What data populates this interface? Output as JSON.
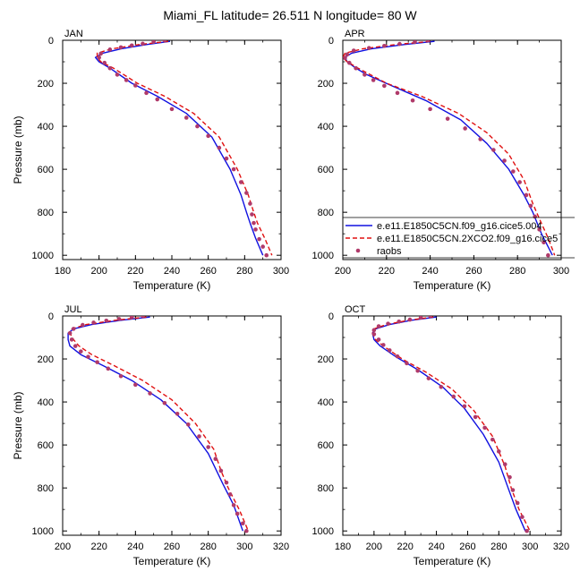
{
  "title": "Miami_FL  latitude= 26.511 N longitude= 80 W",
  "colors": {
    "model1": "#1010e0",
    "model2": "#e01010",
    "raobs": "#b03a6a"
  },
  "legend": {
    "entries": [
      {
        "label": "e.e11.E1850C5CN.f09_g16.cice5.004",
        "style": "solid",
        "color_key": "model1"
      },
      {
        "label": "e.e11.E1850C5CN.2XCO2.f09_g16.cice5",
        "style": "dashed",
        "color_key": "model2"
      },
      {
        "label": "raobs",
        "style": "dots",
        "color_key": "raobs"
      }
    ],
    "panel": "APR",
    "placement": "bottom-right"
  },
  "chart_data": [
    {
      "type": "line",
      "panel": "JAN",
      "xlabel": "Temperature (K)",
      "ylabel": "Pressure (mb)",
      "xlim": [
        180,
        300
      ],
      "ylim": [
        1020,
        0
      ],
      "xticks": [
        180,
        200,
        220,
        240,
        260,
        280,
        300
      ],
      "yticks": [
        0,
        200,
        400,
        600,
        800,
        1000
      ],
      "series": [
        {
          "name": "e.e11.E1850C5CN.f09_g16.cice5.004",
          "style": "solid",
          "x": [
            239,
            226,
            212,
            202,
            198,
            200,
            206,
            218,
            232,
            248,
            262,
            272,
            278,
            281,
            283,
            286,
            290
          ],
          "y": [
            5,
            20,
            40,
            60,
            80,
            100,
            130,
            200,
            260,
            340,
            450,
            600,
            720,
            800,
            850,
            920,
            1000
          ]
        },
        {
          "name": "e.e11.E1850C5CN.2XCO2.f09_g16.cice5",
          "style": "dashed",
          "x": [
            238,
            222,
            207,
            199,
            199,
            201,
            208,
            221,
            236,
            252,
            266,
            276,
            282,
            285,
            287,
            291,
            295
          ],
          "y": [
            5,
            20,
            40,
            60,
            80,
            100,
            130,
            200,
            260,
            340,
            450,
            600,
            720,
            800,
            850,
            920,
            1000
          ]
        },
        {
          "name": "raobs",
          "style": "dots",
          "x": [
            236,
            230,
            224,
            218,
            212,
            206,
            201,
            200,
            203,
            206,
            210,
            215,
            220,
            226,
            232,
            240,
            248,
            254,
            260,
            266,
            270,
            274,
            278,
            281,
            283,
            284,
            285,
            286,
            288,
            290,
            292
          ],
          "y": [
            0,
            7,
            16,
            24,
            33,
            43,
            62,
            80,
            105,
            130,
            160,
            185,
            210,
            245,
            275,
            320,
            360,
            400,
            445,
            500,
            550,
            600,
            660,
            710,
            760,
            810,
            850,
            880,
            925,
            960,
            1000
          ]
        }
      ]
    },
    {
      "type": "line",
      "panel": "APR",
      "xlabel": "Temperature (K)",
      "ylabel": "",
      "xlim": [
        200,
        300
      ],
      "ylim": [
        1020,
        0
      ],
      "xticks": [
        200,
        220,
        240,
        260,
        280,
        300
      ],
      "yticks": [
        0,
        200,
        400,
        600,
        800,
        1000
      ],
      "series": [
        {
          "name": "e.e11.E1850C5CN.f09_g16.cice5.004",
          "style": "solid",
          "x": [
            242,
            228,
            213,
            204,
            201,
            202,
            206,
            211,
            222,
            238,
            254,
            266,
            276,
            283,
            287,
            291,
            296
          ],
          "y": [
            5,
            20,
            40,
            60,
            80,
            100,
            130,
            160,
            210,
            280,
            370,
            480,
            600,
            720,
            800,
            900,
            1000
          ]
        },
        {
          "name": "e.e11.E1850C5CN.2XCO2.f09_g16.cice5",
          "style": "dashed",
          "x": [
            240,
            224,
            209,
            201,
            200,
            202,
            207,
            220,
            236,
            253,
            266,
            276,
            283,
            287,
            290,
            294,
            297
          ],
          "y": [
            5,
            20,
            40,
            60,
            80,
            100,
            130,
            200,
            260,
            340,
            430,
            530,
            650,
            760,
            830,
            920,
            1000
          ]
        },
        {
          "name": "raobs",
          "style": "dots",
          "x": [
            239,
            233,
            226,
            219,
            212,
            205,
            202,
            201,
            203,
            206,
            210,
            214,
            219,
            225,
            232,
            240,
            248,
            256,
            263,
            269,
            274,
            278,
            281,
            284,
            286,
            288,
            290,
            292,
            294
          ],
          "y": [
            0,
            8,
            17,
            26,
            36,
            48,
            66,
            82,
            105,
            130,
            160,
            185,
            212,
            245,
            280,
            320,
            365,
            410,
            460,
            510,
            560,
            610,
            660,
            720,
            770,
            820,
            880,
            940,
            1000
          ]
        }
      ]
    },
    {
      "type": "line",
      "panel": "JUL",
      "xlabel": "Temperature (K)",
      "ylabel": "Pressure (mb)",
      "xlim": [
        200,
        320
      ],
      "ylim": [
        1020,
        0
      ],
      "xticks": [
        200,
        220,
        240,
        260,
        280,
        300,
        320
      ],
      "yticks": [
        0,
        200,
        400,
        600,
        800,
        1000
      ],
      "series": [
        {
          "name": "e.e11.E1850C5CN.f09_g16.cice5.004",
          "style": "solid",
          "x": [
            248,
            232,
            216,
            206,
            203,
            203,
            204,
            210,
            222,
            238,
            254,
            268,
            280,
            288,
            294,
            299
          ],
          "y": [
            5,
            20,
            40,
            60,
            80,
            110,
            140,
            180,
            230,
            300,
            390,
            500,
            640,
            780,
            880,
            1000
          ]
        },
        {
          "name": "e.e11.E1850C5CN.2XCO2.f09_g16.cice5",
          "style": "dashed",
          "x": [
            246,
            229,
            213,
            205,
            204,
            206,
            209,
            216,
            228,
            244,
            260,
            273,
            283,
            287,
            291,
            297,
            302
          ],
          "y": [
            5,
            20,
            40,
            60,
            80,
            110,
            140,
            180,
            230,
            300,
            390,
            500,
            620,
            720,
            800,
            900,
            1000
          ]
        },
        {
          "name": "raobs",
          "style": "dots",
          "x": [
            244,
            238,
            231,
            224,
            217,
            211,
            206,
            204,
            205,
            207,
            210,
            214,
            219,
            225,
            232,
            240,
            248,
            256,
            263,
            269,
            275,
            280,
            284,
            287,
            290,
            292,
            294,
            296,
            299,
            301
          ],
          "y": [
            0,
            6,
            14,
            22,
            31,
            42,
            60,
            80,
            110,
            140,
            165,
            190,
            215,
            245,
            280,
            320,
            360,
            405,
            455,
            505,
            560,
            610,
            665,
            720,
            775,
            830,
            880,
            920,
            965,
            1000
          ]
        }
      ]
    },
    {
      "type": "line",
      "panel": "OCT",
      "xlabel": "Temperature (K)",
      "ylabel": "",
      "xlim": [
        180,
        320
      ],
      "ylim": [
        1020,
        0
      ],
      "xticks": [
        180,
        200,
        220,
        240,
        260,
        280,
        300,
        320
      ],
      "yticks": [
        0,
        200,
        400,
        600,
        800,
        1000
      ],
      "series": [
        {
          "name": "e.e11.E1850C5CN.f09_g16.cice5.004",
          "style": "solid",
          "x": [
            240,
            224,
            210,
            201,
            199,
            200,
            204,
            214,
            228,
            244,
            258,
            270,
            280,
            286,
            291,
            297
          ],
          "y": [
            5,
            20,
            40,
            60,
            80,
            110,
            140,
            190,
            250,
            330,
            430,
            550,
            680,
            800,
            900,
            1000
          ]
        },
        {
          "name": "e.e11.E1850C5CN.2XCO2.f09_g16.cice5",
          "style": "dashed",
          "x": [
            238,
            222,
            208,
            200,
            199,
            201,
            206,
            218,
            233,
            250,
            264,
            276,
            284,
            288,
            293,
            300
          ],
          "y": [
            5,
            20,
            40,
            60,
            80,
            110,
            140,
            200,
            260,
            340,
            440,
            560,
            700,
            800,
            900,
            1000
          ]
        },
        {
          "name": "raobs",
          "style": "dots",
          "x": [
            236,
            230,
            223,
            216,
            209,
            203,
            200,
            200,
            203,
            206,
            210,
            215,
            221,
            228,
            235,
            243,
            251,
            258,
            265,
            271,
            276,
            280,
            284,
            287,
            289,
            292,
            295,
            298
          ],
          "y": [
            0,
            8,
            17,
            26,
            36,
            48,
            66,
            85,
            110,
            135,
            160,
            188,
            220,
            255,
            290,
            330,
            375,
            420,
            470,
            520,
            575,
            630,
            690,
            750,
            810,
            870,
            935,
            1000
          ]
        }
      ]
    }
  ]
}
